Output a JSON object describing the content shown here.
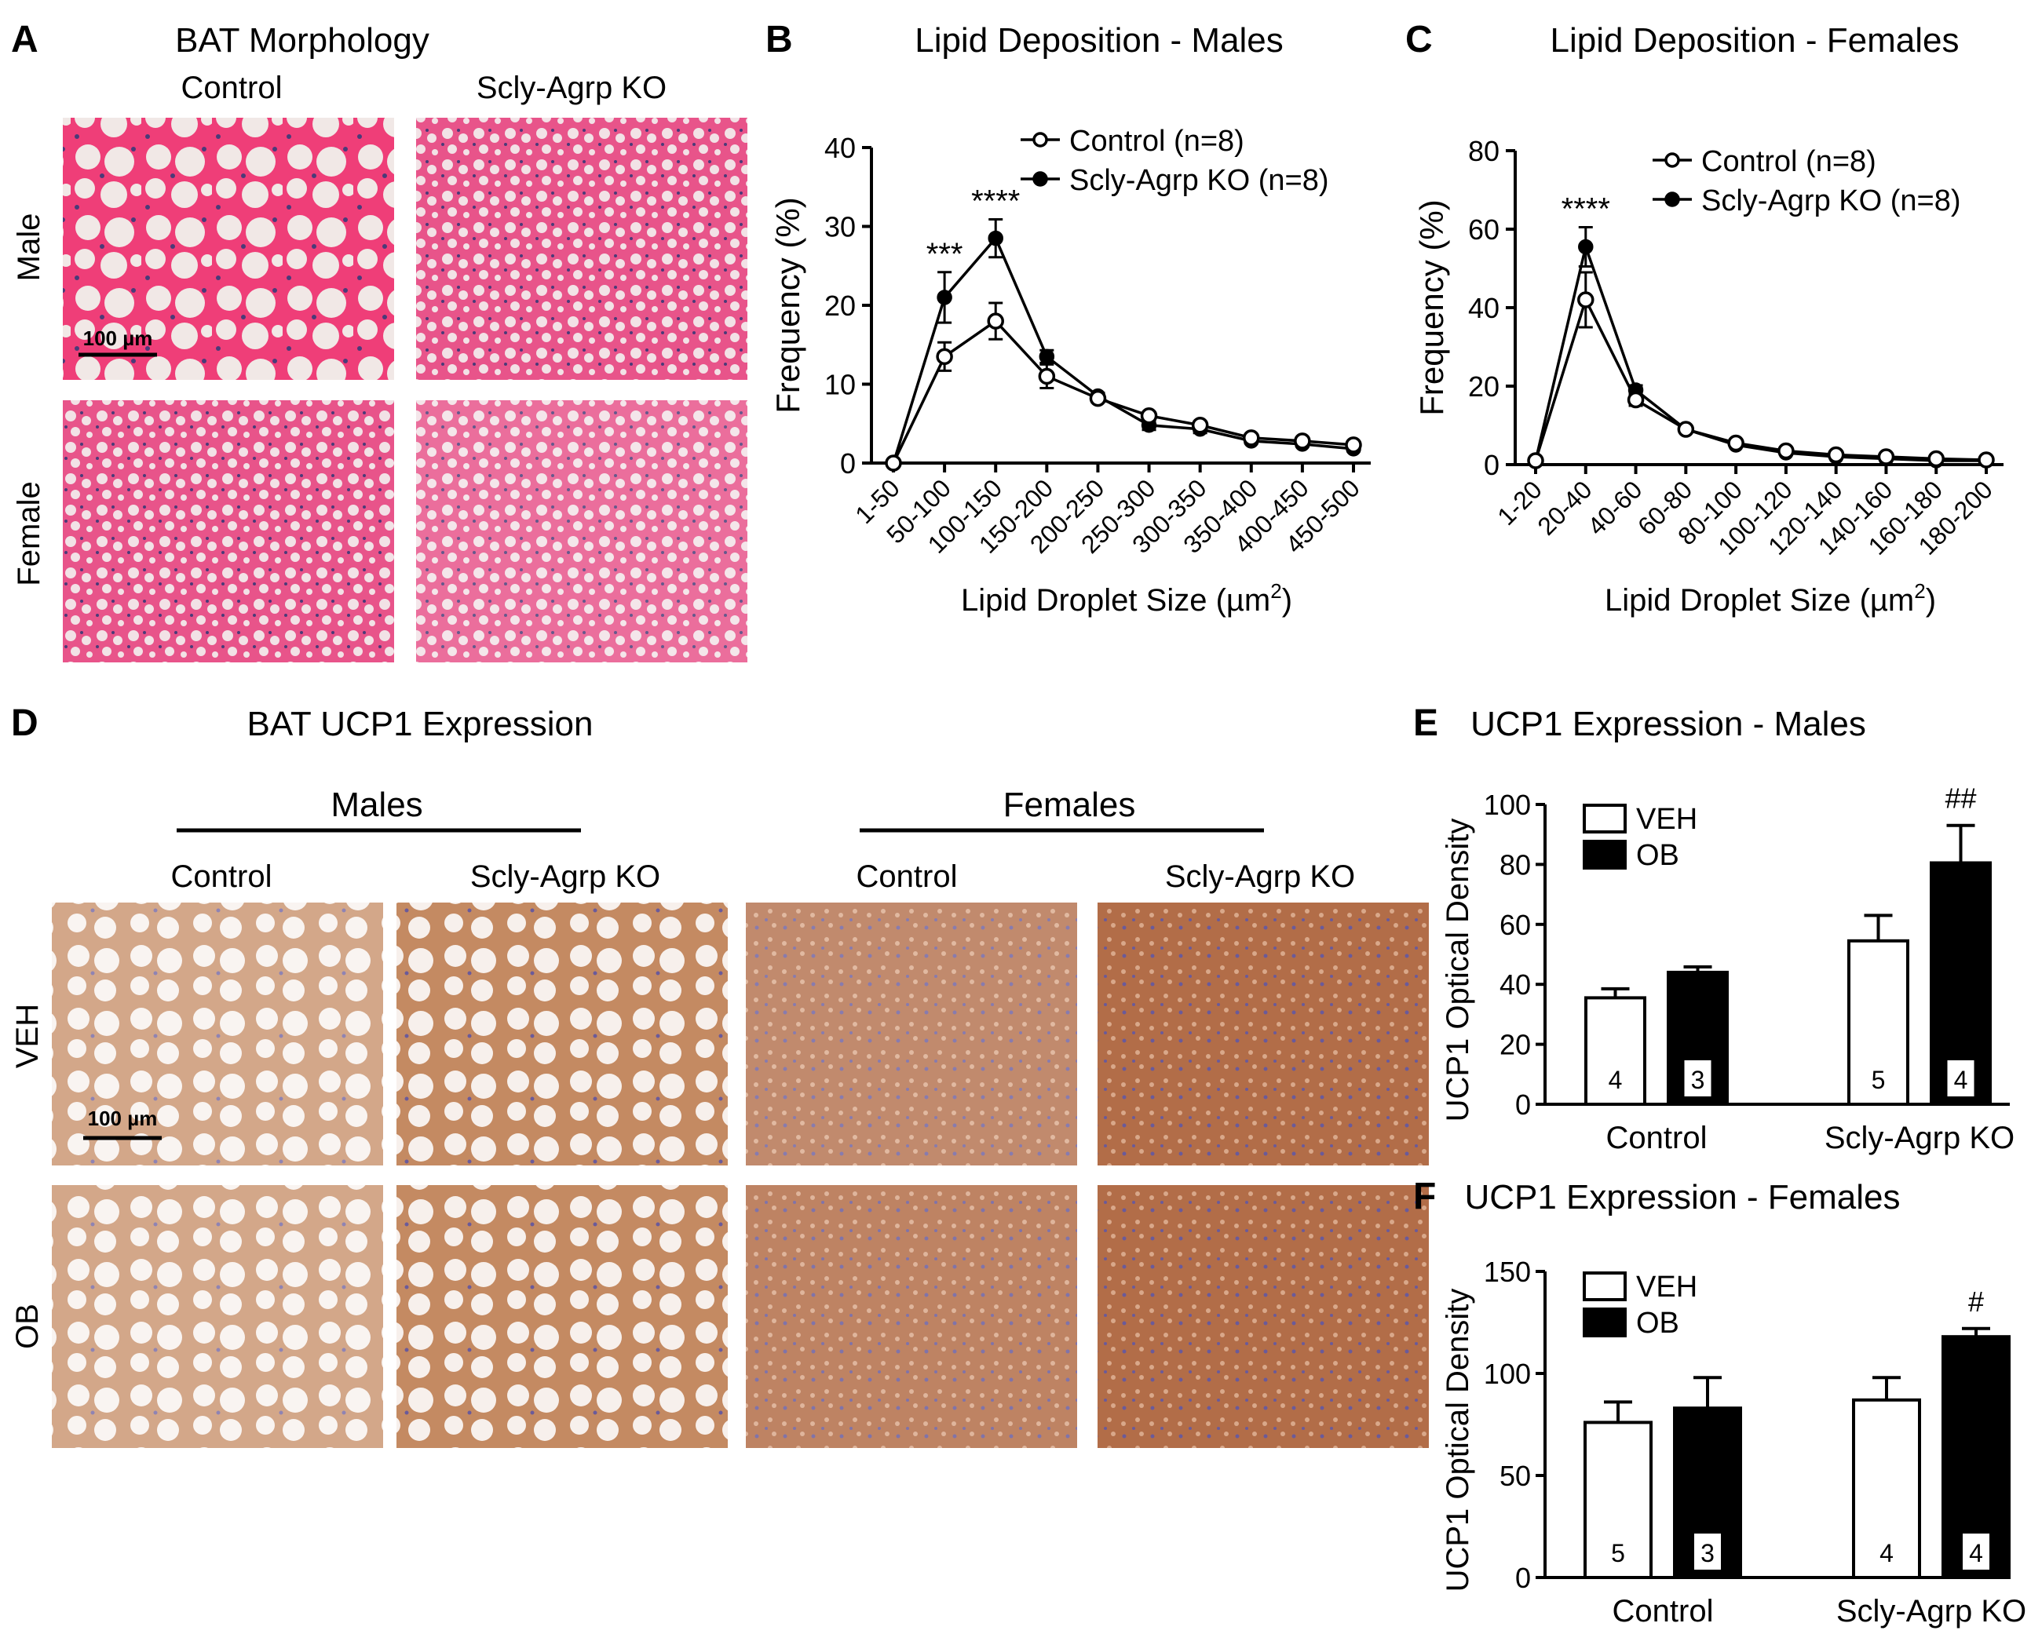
{
  "panel_letters": {
    "a": "A",
    "b": "B",
    "c": "C",
    "d": "D",
    "e": "E",
    "f": "F"
  },
  "panelA": {
    "title": "BAT Morphology",
    "col_labels": [
      "Control",
      "Scly-Agrp KO"
    ],
    "row_labels": [
      "Male",
      "Female"
    ],
    "scale_bar": "100 µm",
    "colors": {
      "background": "#f0e6e4",
      "tissue": "#e0457a",
      "nuclei": "#4a3a78"
    }
  },
  "panelD": {
    "title": "BAT UCP1 Expression",
    "group_labels": [
      "Males",
      "Females"
    ],
    "col_labels": [
      "Control",
      "Scly-Agrp KO",
      "Control",
      "Scly-Agrp KO"
    ],
    "row_labels": [
      "VEH",
      "OB"
    ],
    "scale_bar": "100 µm",
    "colors": {
      "background": "#f6ede6",
      "tissue": "#b8683c",
      "nuclei": "#6a5a9a"
    }
  },
  "chart_data": [
    {
      "id": "B",
      "type": "line",
      "title": "Lipid Deposition - Males",
      "xlabel": "Lipid Droplet Size (µm²)",
      "ylabel": "Frequency (%)",
      "categories": [
        "1-50",
        "50-100",
        "100-150",
        "150-200",
        "200-250",
        "250-300",
        "300-350",
        "350-400",
        "400-450",
        "450-500"
      ],
      "ylim": [
        0,
        40
      ],
      "yticks": [
        0,
        10,
        20,
        30,
        40
      ],
      "series": [
        {
          "name": "Control (n=8)",
          "marker": "open",
          "values": [
            0,
            13.5,
            18,
            11,
            8.2,
            6,
            4.8,
            3.2,
            2.8,
            2.3
          ],
          "errors": [
            0,
            1.8,
            2.3,
            1.5,
            0.5,
            0.4,
            0.4,
            0.3,
            0.3,
            0.3
          ]
        },
        {
          "name": "Scly-Agrp KO (n=8)",
          "marker": "filled",
          "values": [
            0,
            21,
            28.5,
            13.5,
            8.5,
            4.8,
            4.3,
            2.8,
            2.4,
            1.8
          ],
          "errors": [
            0,
            3.2,
            2.4,
            0.8,
            0.4,
            0.6,
            0.5,
            0.3,
            0.3,
            0.3
          ]
        }
      ],
      "annotations": [
        {
          "category": "50-100",
          "text": "***"
        },
        {
          "category": "100-150",
          "text": "****"
        }
      ]
    },
    {
      "id": "C",
      "type": "line",
      "title": "Lipid Deposition - Females",
      "xlabel": "Lipid Droplet Size (µm²)",
      "ylabel": "Frequency (%)",
      "categories": [
        "1-20",
        "20-40",
        "40-60",
        "60-80",
        "80-100",
        "100-120",
        "120-140",
        "140-160",
        "160-180",
        "180-200"
      ],
      "ylim": [
        0,
        80
      ],
      "yticks": [
        0,
        20,
        40,
        60,
        80
      ],
      "series": [
        {
          "name": "Control (n=8)",
          "marker": "open",
          "values": [
            1,
            42,
            16.5,
            9,
            5.5,
            3.5,
            2.5,
            2,
            1.5,
            1.2
          ],
          "errors": [
            0,
            7,
            1.5,
            0.8,
            0.6,
            0.4,
            0.3,
            0.3,
            0.2,
            0.2
          ]
        },
        {
          "name": "Scly-Agrp KO (n=8)",
          "marker": "filled",
          "values": [
            1,
            55.5,
            19,
            9,
            5,
            3,
            2,
            1.5,
            1,
            1
          ],
          "errors": [
            0,
            5,
            1.2,
            0.7,
            0.5,
            0.4,
            0.3,
            0.2,
            0.2,
            0.2
          ]
        }
      ],
      "annotations": [
        {
          "category": "20-40",
          "text": "****"
        }
      ]
    },
    {
      "id": "E",
      "type": "bar",
      "title": "UCP1 Expression - Males",
      "ylabel": "UCP1 Optical Density",
      "categories": [
        "Control",
        "Scly-Agrp KO"
      ],
      "ylim": [
        0,
        100
      ],
      "yticks": [
        0,
        20,
        40,
        60,
        80,
        100
      ],
      "series": [
        {
          "name": "VEH",
          "fill": "open",
          "values": [
            35.5,
            54.5
          ],
          "errors": [
            3,
            8.5
          ],
          "n": [
            "4",
            "5"
          ]
        },
        {
          "name": "OB",
          "fill": "filled",
          "values": [
            44,
            80.5
          ],
          "errors": [
            1.8,
            12.5
          ],
          "n": [
            "3",
            "4"
          ]
        }
      ],
      "annotations": [
        {
          "category": "Scly-Agrp KO",
          "series": "OB",
          "text": "##"
        }
      ]
    },
    {
      "id": "F",
      "type": "bar",
      "title": "UCP1 Expression - Females",
      "ylabel": "UCP1 Optical Density",
      "categories": [
        "Control",
        "Scly-Agrp KO"
      ],
      "ylim": [
        0,
        150
      ],
      "yticks": [
        0,
        50,
        100,
        150
      ],
      "series": [
        {
          "name": "VEH",
          "fill": "open",
          "values": [
            76,
            87
          ],
          "errors": [
            10,
            11
          ],
          "n": [
            "5",
            "4"
          ]
        },
        {
          "name": "OB",
          "fill": "filled",
          "values": [
            83,
            118
          ],
          "errors": [
            15,
            4
          ],
          "n": [
            "3",
            "4"
          ]
        }
      ],
      "annotations": [
        {
          "category": "Scly-Agrp KO",
          "series": "OB",
          "text": "#"
        }
      ]
    }
  ]
}
